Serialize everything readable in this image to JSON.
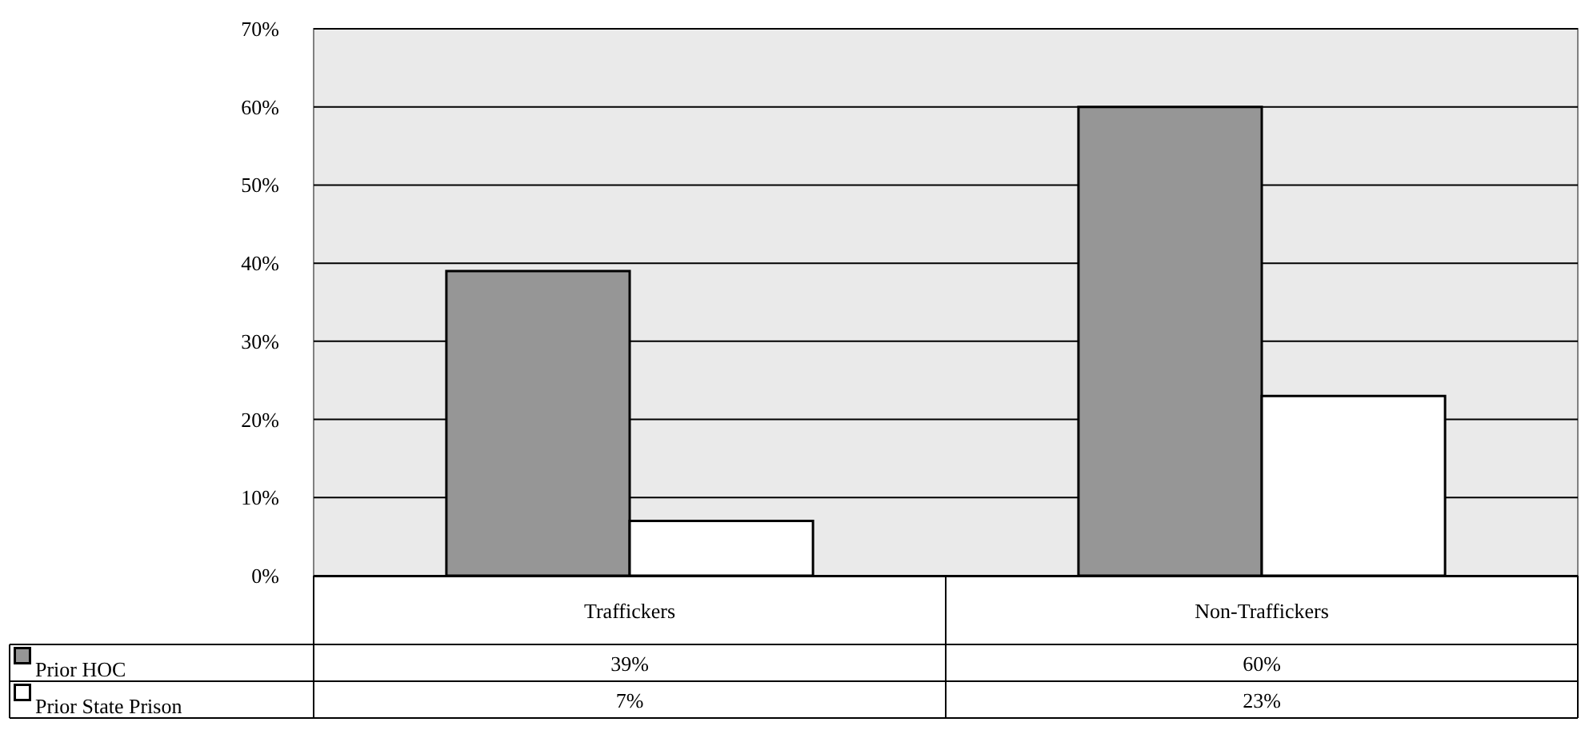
{
  "chart_data": {
    "type": "bar",
    "categories": [
      "Traffickers",
      "Non-Traffickers"
    ],
    "series": [
      {
        "name": "Prior HOC",
        "color": "#969696",
        "values": [
          39,
          60
        ],
        "value_labels": [
          "39%",
          "60%"
        ]
      },
      {
        "name": "Prior State Prison",
        "color": "#ffffff",
        "values": [
          7,
          23
        ],
        "value_labels": [
          "7%",
          "23%"
        ]
      }
    ],
    "ylim": [
      0,
      70
    ],
    "yticks": [
      {
        "value": 0,
        "label": "0%"
      },
      {
        "value": 10,
        "label": "10%"
      },
      {
        "value": 20,
        "label": "20%"
      },
      {
        "value": 30,
        "label": "30%"
      },
      {
        "value": 40,
        "label": "40%"
      },
      {
        "value": 50,
        "label": "50%"
      },
      {
        "value": 60,
        "label": "60%"
      },
      {
        "value": 70,
        "label": "70%"
      }
    ],
    "grid": "y",
    "legend": "bottom"
  }
}
